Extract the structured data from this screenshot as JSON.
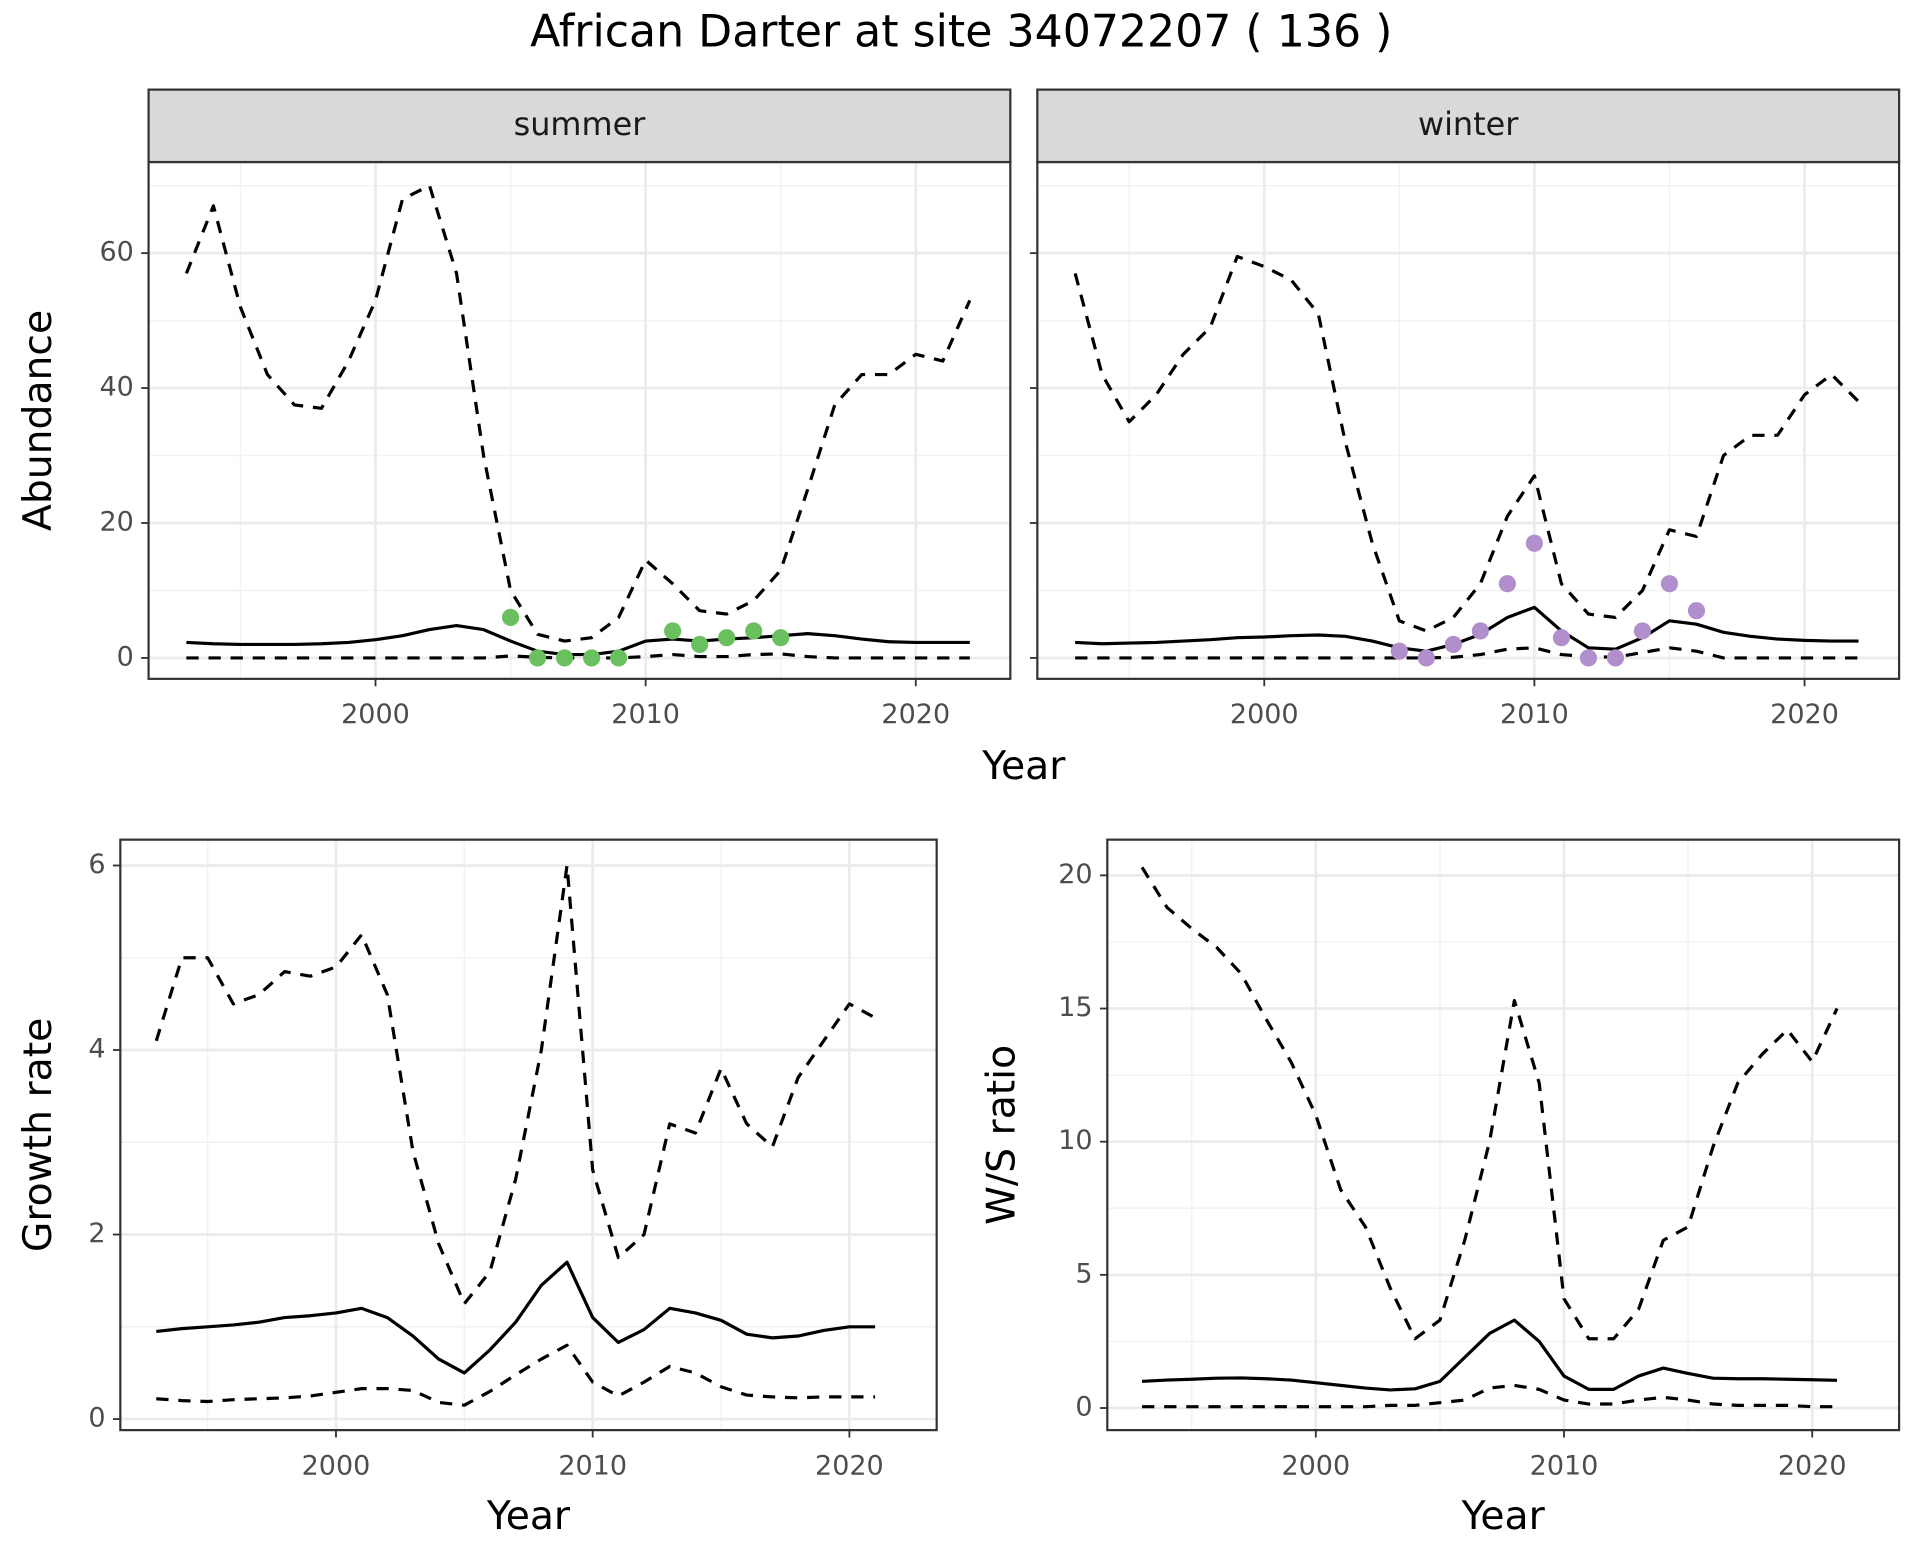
{
  "title": "African Darter at site 34072207 ( 136 )",
  "top_xlabel": "Year",
  "chart_data": [
    {
      "type": "line",
      "facet": "summer",
      "ylabel": "Abundance",
      "grid": true,
      "xlim": [
        1991.6,
        2023.5
      ],
      "xticks": [
        2000,
        2010,
        2020
      ],
      "minor_xticks": [
        1995,
        2005,
        2015
      ],
      "ylim": [
        -3.1,
        73.5
      ],
      "yticks": [
        0,
        20,
        40,
        60
      ],
      "minor_yticks": [
        10,
        30,
        50,
        70
      ],
      "x": [
        1993,
        1994,
        1995,
        1996,
        1997,
        1998,
        1999,
        2000,
        2001,
        2002,
        2003,
        2004,
        2005,
        2006,
        2007,
        2008,
        2009,
        2010,
        2011,
        2012,
        2013,
        2014,
        2015,
        2016,
        2017,
        2018,
        2019,
        2020,
        2021,
        2022
      ],
      "series": [
        {
          "style": "dashed",
          "color": "#000000",
          "values": [
            57,
            67,
            52,
            42,
            37.5,
            37,
            44,
            53,
            68,
            70,
            57,
            30,
            10,
            3.5,
            2.5,
            3,
            6,
            14.5,
            11,
            7,
            6.5,
            8.5,
            13,
            25,
            37.5,
            42,
            42,
            45,
            44,
            53
          ]
        },
        {
          "style": "solid",
          "color": "#000000",
          "values": [
            2.3,
            2.1,
            2.0,
            2.0,
            2.0,
            2.1,
            2.3,
            2.7,
            3.3,
            4.2,
            4.8,
            4.2,
            2.5,
            1.0,
            0.5,
            0.5,
            1.0,
            2.5,
            2.8,
            2.5,
            2.8,
            3.0,
            3.3,
            3.6,
            3.3,
            2.8,
            2.4,
            2.3,
            2.3,
            2.3
          ]
        },
        {
          "style": "dashed",
          "color": "#000000",
          "values": [
            0,
            0,
            0,
            0,
            0,
            0,
            0,
            0,
            0,
            0,
            0,
            0,
            0.3,
            0.1,
            0,
            0,
            0,
            0.2,
            0.5,
            0.2,
            0.2,
            0.5,
            0.6,
            0.2,
            0,
            0,
            0,
            0,
            0,
            0
          ]
        },
        {
          "style": "points",
          "color": "#6abf5e",
          "x": [
            2005,
            2006,
            2007,
            2008,
            2009,
            2011,
            2012,
            2013,
            2014,
            2015
          ],
          "values": [
            6,
            0,
            0,
            0,
            0,
            4,
            2,
            3,
            4,
            3
          ]
        }
      ]
    },
    {
      "type": "line",
      "facet": "winter",
      "grid": true,
      "ytick_labels": false,
      "xlim": [
        1991.6,
        2023.5
      ],
      "xticks": [
        2000,
        2010,
        2020
      ],
      "minor_xticks": [
        1995,
        2005,
        2015
      ],
      "ylim": [
        -3.1,
        73.5
      ],
      "yticks": [
        0,
        20,
        40,
        60
      ],
      "minor_yticks": [
        10,
        30,
        50,
        70
      ],
      "x": [
        1993,
        1994,
        1995,
        1996,
        1997,
        1998,
        1999,
        2000,
        2001,
        2002,
        2003,
        2004,
        2005,
        2006,
        2007,
        2008,
        2009,
        2010,
        2011,
        2012,
        2013,
        2014,
        2015,
        2016,
        2017,
        2018,
        2019,
        2020,
        2021,
        2022
      ],
      "series": [
        {
          "style": "dashed",
          "color": "#000000",
          "values": [
            57,
            42,
            35,
            39,
            45,
            49,
            59.5,
            58,
            56,
            51,
            32,
            17,
            5.5,
            4,
            6,
            11,
            21,
            27,
            11,
            6.5,
            6,
            10,
            19,
            18,
            30,
            33,
            33,
            39,
            42,
            38
          ]
        },
        {
          "style": "solid",
          "color": "#000000",
          "values": [
            2.3,
            2.1,
            2.2,
            2.3,
            2.5,
            2.7,
            3.0,
            3.1,
            3.3,
            3.4,
            3.2,
            2.5,
            1.5,
            1.0,
            2.0,
            3.5,
            6.0,
            7.5,
            4.0,
            1.5,
            1.3,
            3.0,
            5.5,
            5.0,
            3.8,
            3.2,
            2.8,
            2.6,
            2.5,
            2.5
          ]
        },
        {
          "style": "dashed",
          "color": "#000000",
          "values": [
            0,
            0,
            0,
            0,
            0,
            0,
            0,
            0,
            0,
            0,
            0,
            0,
            0,
            0,
            0.1,
            0.5,
            1.3,
            1.5,
            0.5,
            0.2,
            0.1,
            0.8,
            1.5,
            1.0,
            0,
            0,
            0,
            0,
            0,
            0
          ]
        },
        {
          "style": "points",
          "color": "#b08fcc",
          "x": [
            2005,
            2006,
            2007,
            2008,
            2009,
            2010,
            2011,
            2012,
            2013,
            2014,
            2015,
            2016
          ],
          "values": [
            1,
            0,
            2,
            4,
            11,
            17,
            3,
            0,
            0,
            4,
            11,
            7
          ]
        }
      ]
    },
    {
      "type": "line",
      "xlabel": "Year",
      "ylabel": "Growth rate",
      "grid": true,
      "xlim": [
        1991.6,
        2023.4
      ],
      "xticks": [
        2000,
        2010,
        2020
      ],
      "minor_xticks": [
        1995,
        2005,
        2015
      ],
      "ylim": [
        -0.12,
        6.28
      ],
      "yticks": [
        0,
        2,
        4,
        6
      ],
      "minor_yticks": [
        1,
        3,
        5
      ],
      "x": [
        1993,
        1994,
        1995,
        1996,
        1997,
        1998,
        1999,
        2000,
        2001,
        2002,
        2003,
        2004,
        2005,
        2006,
        2007,
        2008,
        2009,
        2010,
        2011,
        2012,
        2013,
        2014,
        2015,
        2016,
        2017,
        2018,
        2019,
        2020,
        2021
      ],
      "series": [
        {
          "style": "dashed",
          "color": "#000000",
          "values": [
            4.1,
            5.0,
            5.0,
            4.5,
            4.6,
            4.85,
            4.8,
            4.9,
            5.25,
            4.6,
            2.9,
            1.9,
            1.25,
            1.6,
            2.6,
            4.0,
            6.0,
            2.7,
            1.75,
            2.0,
            3.2,
            3.1,
            3.8,
            3.2,
            2.95,
            3.7,
            4.1,
            4.5,
            4.35
          ]
        },
        {
          "style": "solid",
          "color": "#000000",
          "values": [
            0.95,
            0.98,
            1.0,
            1.02,
            1.05,
            1.1,
            1.12,
            1.15,
            1.2,
            1.1,
            0.9,
            0.65,
            0.5,
            0.75,
            1.05,
            1.45,
            1.7,
            1.1,
            0.83,
            0.97,
            1.2,
            1.15,
            1.07,
            0.92,
            0.88,
            0.9,
            0.96,
            1.0,
            1.0
          ]
        },
        {
          "style": "dashed",
          "color": "#000000",
          "values": [
            0.22,
            0.2,
            0.19,
            0.21,
            0.22,
            0.23,
            0.25,
            0.29,
            0.33,
            0.33,
            0.31,
            0.18,
            0.15,
            0.3,
            0.48,
            0.65,
            0.8,
            0.4,
            0.25,
            0.4,
            0.57,
            0.5,
            0.35,
            0.26,
            0.24,
            0.23,
            0.24,
            0.24,
            0.24
          ]
        }
      ]
    },
    {
      "type": "line",
      "xlabel": "Year",
      "ylabel": "W/S ratio",
      "grid": true,
      "xlim": [
        1991.6,
        2023.5
      ],
      "xticks": [
        2000,
        2010,
        2020
      ],
      "minor_xticks": [
        1995,
        2005,
        2015
      ],
      "ylim": [
        -0.83,
        21.34
      ],
      "yticks": [
        0,
        5,
        10,
        15,
        20
      ],
      "minor_yticks": [
        2.5,
        7.5,
        12.5,
        17.5
      ],
      "x": [
        1993,
        1994,
        1995,
        1996,
        1997,
        1998,
        1999,
        2000,
        2001,
        2002,
        2003,
        2004,
        2005,
        2006,
        2007,
        2008,
        2009,
        2010,
        2011,
        2012,
        2013,
        2014,
        2015,
        2016,
        2017,
        2018,
        2019,
        2020,
        2021
      ],
      "series": [
        {
          "style": "dashed",
          "color": "#000000",
          "values": [
            20.3,
            18.8,
            18.0,
            17.3,
            16.3,
            14.6,
            13.0,
            11.0,
            8.2,
            6.8,
            4.5,
            2.6,
            3.3,
            6.3,
            10.0,
            15.3,
            12.2,
            4.1,
            2.6,
            2.6,
            3.7,
            6.3,
            6.8,
            9.8,
            12.2,
            13.3,
            14.2,
            13.0,
            15.0
          ]
        },
        {
          "style": "solid",
          "color": "#000000",
          "values": [
            1.0,
            1.05,
            1.08,
            1.12,
            1.13,
            1.1,
            1.05,
            0.95,
            0.85,
            0.75,
            0.68,
            0.72,
            1.0,
            1.9,
            2.8,
            3.3,
            2.5,
            1.2,
            0.7,
            0.7,
            1.2,
            1.5,
            1.3,
            1.12,
            1.1,
            1.1,
            1.08,
            1.06,
            1.04
          ]
        },
        {
          "style": "dashed",
          "color": "#000000",
          "values": [
            0.05,
            0.05,
            0.05,
            0.05,
            0.05,
            0.05,
            0.05,
            0.05,
            0.05,
            0.05,
            0.1,
            0.1,
            0.2,
            0.3,
            0.75,
            0.85,
            0.7,
            0.3,
            0.15,
            0.15,
            0.3,
            0.4,
            0.3,
            0.15,
            0.1,
            0.1,
            0.1,
            0.05,
            0.05
          ]
        }
      ]
    }
  ]
}
